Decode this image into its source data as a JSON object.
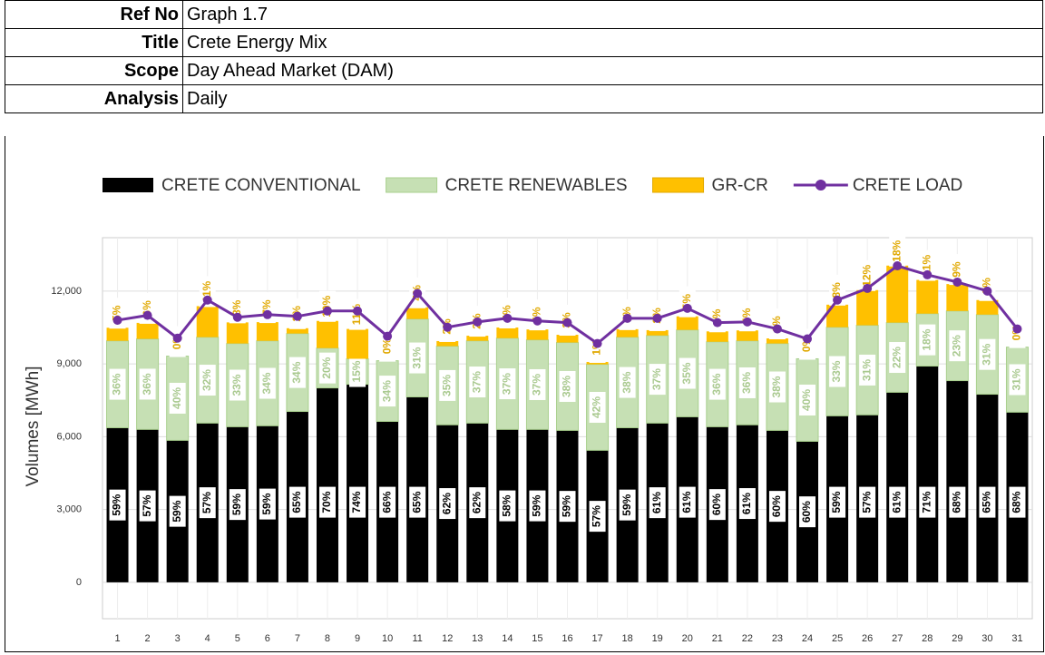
{
  "header": {
    "rows": [
      {
        "label": "Ref No",
        "value": "Graph 1.7"
      },
      {
        "label": "Title",
        "value": "Crete Energy Mix"
      },
      {
        "label": "Scope",
        "value": "Day Ahead Market (DAM)"
      },
      {
        "label": "Analysis",
        "value": "Daily"
      }
    ]
  },
  "chart_data": {
    "type": "bar",
    "stacked": true,
    "y_label": "Volumes [MWh]",
    "categories": [
      "1",
      "2",
      "3",
      "4",
      "5",
      "6",
      "7",
      "8",
      "9",
      "10",
      "11",
      "12",
      "13",
      "14",
      "15",
      "16",
      "17",
      "18",
      "19",
      "20",
      "21",
      "22",
      "23",
      "24",
      "25",
      "26",
      "27",
      "28",
      "29",
      "30",
      "31"
    ],
    "ylim": [
      -1500,
      14200
    ],
    "yticks": [
      {
        "value": 0,
        "label": "0"
      },
      {
        "value": 3000,
        "label": "3,000"
      },
      {
        "value": 6000,
        "label": "6,000"
      },
      {
        "value": 9000,
        "label": "9,000"
      },
      {
        "value": 12000,
        "label": "12,000"
      }
    ],
    "grid": true,
    "series": [
      {
        "name": "CRETE CONVENTIONAL",
        "color": "#000000",
        "label_color": "#000000",
        "values": [
          6370,
          6300,
          5850,
          6560,
          6410,
          6450,
          7040,
          8010,
          8160,
          6630,
          7640,
          6490,
          6560,
          6300,
          6300,
          6260,
          5440,
          6370,
          6560,
          6820,
          6410,
          6490,
          6260,
          5810,
          6860,
          6900,
          7830,
          8910,
          8310,
          7750,
          7010
        ],
        "share_labels": [
          "59%",
          "57%",
          "59%",
          "57%",
          "59%",
          "59%",
          "65%",
          "70%",
          "74%",
          "66%",
          "65%",
          "62%",
          "62%",
          "58%",
          "59%",
          "59%",
          "57%",
          "59%",
          "61%",
          "61%",
          "60%",
          "61%",
          "60%",
          "60%",
          "59%",
          "57%",
          "61%",
          "71%",
          "68%",
          "65%",
          "68%"
        ]
      },
      {
        "name": "CRETE RENEWABLES",
        "color": "#c6e0b4",
        "label_color": "#a9c98f",
        "values": [
          3580,
          3730,
          3470,
          3540,
          3430,
          3500,
          3210,
          1640,
          1050,
          2500,
          3210,
          3240,
          3390,
          3760,
          3690,
          3620,
          3540,
          3730,
          3610,
          3580,
          3500,
          3460,
          3580,
          3400,
          3650,
          3690,
          2870,
          2160,
          2870,
          3280,
          2680
        ],
        "share_labels": [
          "36%",
          "36%",
          "40%",
          "32%",
          "33%",
          "34%",
          "34%",
          "20%",
          "15%",
          "34%",
          "31%",
          "35%",
          "37%",
          "37%",
          "37%",
          "38%",
          "42%",
          "38%",
          "37%",
          "35%",
          "36%",
          "36%",
          "38%",
          "40%",
          "33%",
          "31%",
          "22%",
          "18%",
          "23%",
          "31%",
          "31%"
        ]
      },
      {
        "name": "GR-CR",
        "color": "#ffc000",
        "label_color": "#e0a800",
        "values": [
          540,
          660,
          0,
          1280,
          870,
          770,
          220,
          1120,
          1230,
          0,
          480,
          210,
          210,
          440,
          430,
          320,
          100,
          330,
          220,
          560,
          430,
          430,
          210,
          0,
          930,
          1450,
          2350,
          1390,
          1110,
          600,
          0
        ],
        "share_labels": [
          "5%",
          "6%",
          "0%",
          "11%",
          "8%",
          "7%",
          "2%",
          "10%",
          "11%",
          "0%",
          "4%",
          "2%",
          "2%",
          "4%",
          "4%",
          "3%",
          "1%",
          "3%",
          "2%",
          "5%",
          "4%",
          "4%",
          "2%",
          "0%",
          "8%",
          "12%",
          "18%",
          "11%",
          "9%",
          "5%",
          "0%"
        ]
      },
      {
        "name": "CRETE LOAD",
        "type": "line",
        "color": "#7030a0",
        "values": [
          10800,
          11000,
          10060,
          11630,
          10920,
          11030,
          10960,
          11180,
          11180,
          10140,
          11900,
          10510,
          10730,
          10880,
          10770,
          10700,
          9840,
          10880,
          10880,
          11290,
          10700,
          10730,
          10440,
          10030,
          11630,
          12110,
          13040,
          12670,
          12370,
          12000,
          10440
        ]
      }
    ]
  }
}
